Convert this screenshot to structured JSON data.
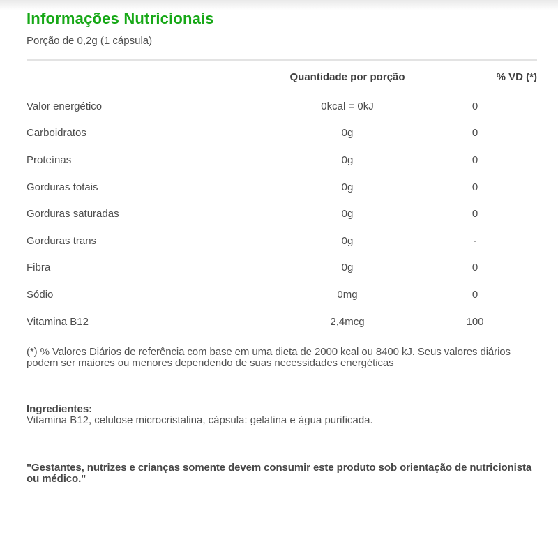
{
  "header": {
    "title": "Informações Nutricionais",
    "serving": "Porção de 0,2g (1 cápsula)"
  },
  "table": {
    "headers": {
      "quantity": "Quantidade por porção",
      "dv": "% VD (*)"
    },
    "rows": [
      {
        "label": "Valor energético",
        "quantity": "0kcal = 0kJ",
        "dv": "0"
      },
      {
        "label": "Carboidratos",
        "quantity": "0g",
        "dv": "0"
      },
      {
        "label": "Proteínas",
        "quantity": "0g",
        "dv": "0"
      },
      {
        "label": "Gorduras totais",
        "quantity": "0g",
        "dv": "0"
      },
      {
        "label": "Gorduras saturadas",
        "quantity": "0g",
        "dv": "0"
      },
      {
        "label": "Gorduras trans",
        "quantity": "0g",
        "dv": "-"
      },
      {
        "label": "Fibra",
        "quantity": "0g",
        "dv": "0"
      },
      {
        "label": "Sódio",
        "quantity": "0mg",
        "dv": "0"
      },
      {
        "label": "Vitamina B12",
        "quantity": "2,4mcg",
        "dv": "100"
      }
    ]
  },
  "footnote": "(*) % Valores Diários de referência com base em uma dieta de 2000 kcal ou 8400 kJ. Seus valores diários podem ser maiores ou menores dependendo de suas necessidades energéticas",
  "ingredients": {
    "heading": "Ingredientes:",
    "body": "Vitamina B12, celulose microcristalina, cápsula: gelatina e água purificada."
  },
  "warning": "\"Gestantes, nutrizes e crianças somente devem consumir este produto sob orientação de nutricionista ou médico.\"",
  "colors": {
    "accent_green": "#17a817",
    "text": "#4d4d4d",
    "divider": "#e3e3e3"
  }
}
